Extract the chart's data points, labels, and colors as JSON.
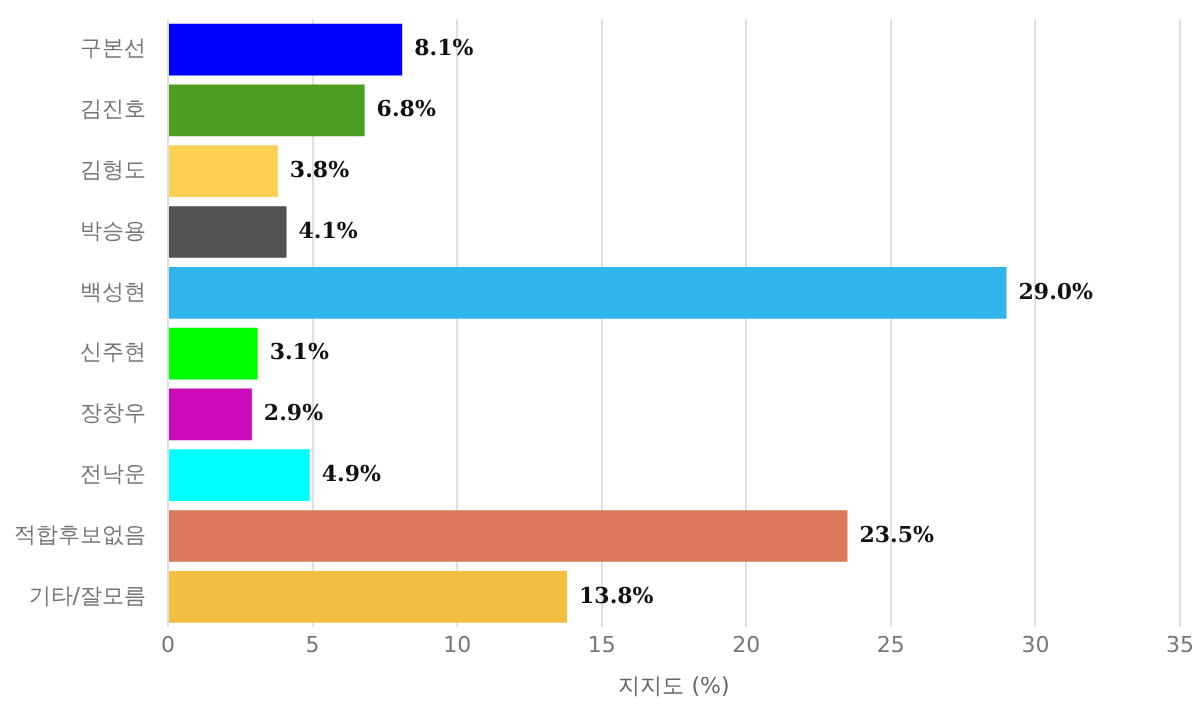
{
  "chart_data": {
    "type": "bar",
    "orientation": "horizontal",
    "xlabel": "지지도 (%)",
    "categories": [
      "구본선",
      "김진호",
      "김형도",
      "박승용",
      "백성현",
      "신주현",
      "장창우",
      "전낙운",
      "적합후보없음",
      "기타/잘모름"
    ],
    "values": [
      8.1,
      6.8,
      3.8,
      4.1,
      29.0,
      3.1,
      2.9,
      4.9,
      23.5,
      13.8
    ],
    "colors": [
      "#0000ff",
      "#4a9e22",
      "#fcd055",
      "#525252",
      "#31b4ec",
      "#00ff00",
      "#cc0ab8",
      "#00ffff",
      "#dc785a",
      "#f2bf43"
    ],
    "value_labels": [
      "8.1%",
      "6.8%",
      "3.8%",
      "4.1%",
      "29.0%",
      "3.1%",
      "2.9%",
      "4.9%",
      "23.5%",
      "13.8%"
    ],
    "xlim": [
      0,
      35
    ],
    "xticks": [
      0,
      5,
      10,
      15,
      20,
      25,
      30,
      35
    ],
    "grid": "x",
    "legend": false
  }
}
